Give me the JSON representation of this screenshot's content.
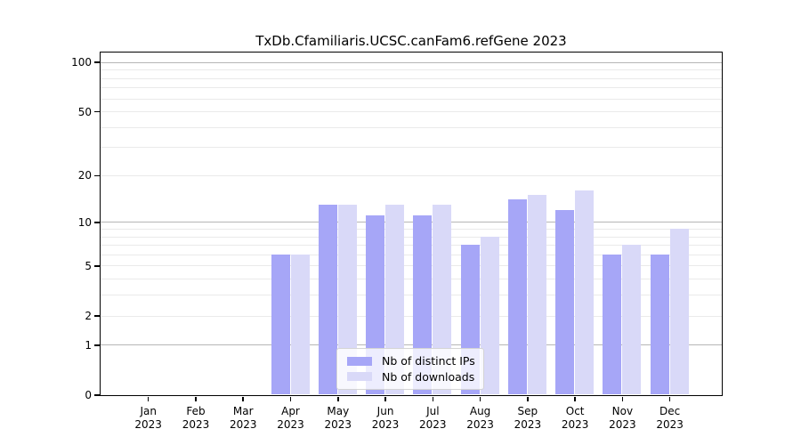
{
  "title": "TxDb.Cfamiliaris.UCSC.canFam6.refGene 2023",
  "colors": {
    "background": "#ffffff",
    "spine": "#000000",
    "text": "#000000",
    "bar_distinct_ips": "#a6a6f7",
    "bar_downloads": "#d9d9f8",
    "grid_major": "#b6b6b6",
    "grid_minor": "#eaeaea",
    "legend_border": "#d4d4d4"
  },
  "y_axis": {
    "scale": "log1p",
    "tick_labels": [
      "100",
      "50",
      "20",
      "10",
      "5",
      "2",
      "1",
      "0"
    ],
    "tick_values": [
      100,
      50,
      20,
      10,
      5,
      2,
      1,
      0
    ],
    "major_grid_values": [
      1,
      10,
      100
    ],
    "minor_grid_values": [
      2,
      3,
      4,
      5,
      6,
      7,
      8,
      9,
      20,
      30,
      40,
      50,
      60,
      70,
      80,
      90
    ]
  },
  "x_axis": {
    "months": [
      "Jan",
      "Feb",
      "Mar",
      "Apr",
      "May",
      "Jun",
      "Jul",
      "Aug",
      "Sep",
      "Oct",
      "Nov",
      "Dec"
    ],
    "year": "2023"
  },
  "legend": {
    "items": [
      {
        "label": "Nb of distinct IPs",
        "color_key": "bar_distinct_ips"
      },
      {
        "label": "Nb of downloads",
        "color_key": "bar_downloads"
      }
    ]
  },
  "chart_data": {
    "type": "bar",
    "title": "TxDb.Cfamiliaris.UCSC.canFam6.refGene 2023",
    "categories": [
      "Jan 2023",
      "Feb 2023",
      "Mar 2023",
      "Apr 2023",
      "May 2023",
      "Jun 2023",
      "Jul 2023",
      "Aug 2023",
      "Sep 2023",
      "Oct 2023",
      "Nov 2023",
      "Dec 2023"
    ],
    "series": [
      {
        "name": "Nb of distinct IPs",
        "color": "#a6a6f7",
        "values": [
          0,
          0,
          0,
          6,
          13,
          11,
          11,
          7,
          14,
          12,
          6,
          6
        ]
      },
      {
        "name": "Nb of downloads",
        "color": "#d9d9f8",
        "values": [
          0,
          0,
          0,
          6,
          13,
          13,
          13,
          8,
          15,
          16,
          7,
          9
        ]
      }
    ],
    "yscale": "log1p",
    "ylim": [
      0,
      100
    ],
    "ytick_values": [
      0,
      1,
      2,
      5,
      10,
      20,
      50,
      100
    ],
    "grid": "horizontal",
    "legend_position": "lower center"
  }
}
